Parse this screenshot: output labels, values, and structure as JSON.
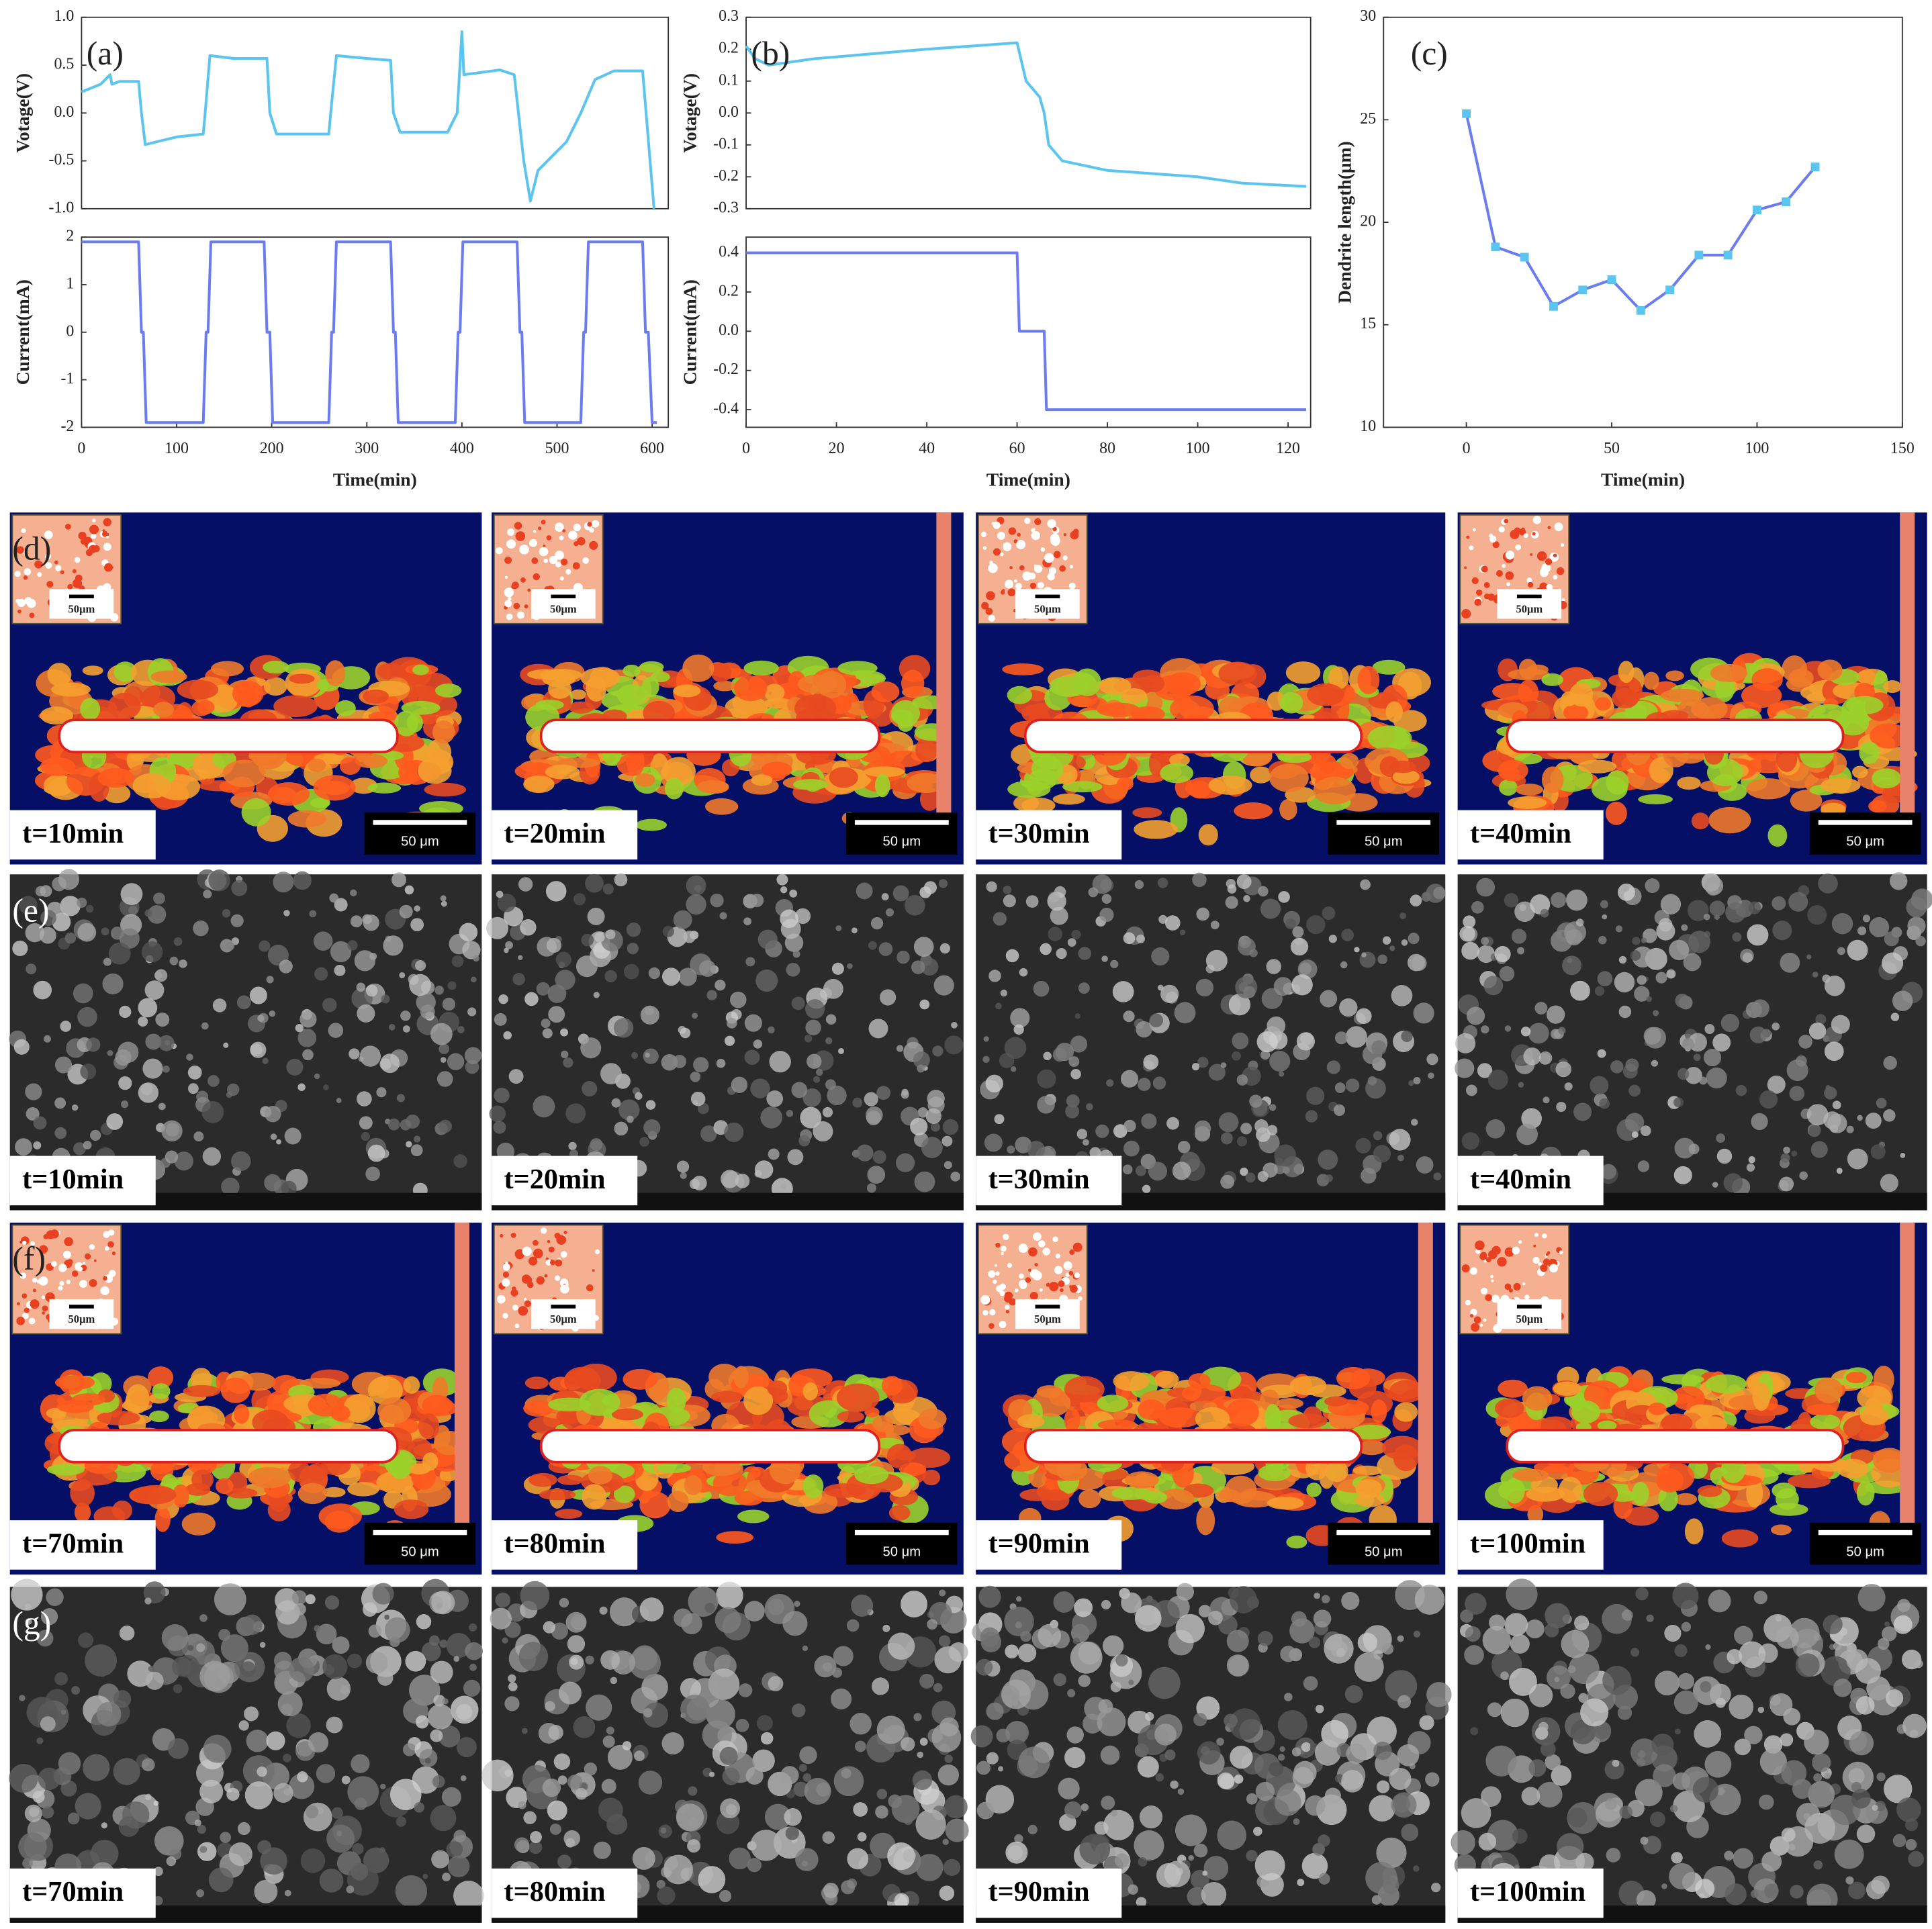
{
  "chart_data": [
    {
      "type": "line",
      "ylabel": "Votage(V)",
      "annotation": "(a)",
      "x": [
        0,
        20,
        30,
        32,
        40,
        60,
        63,
        67,
        100,
        128,
        130,
        135,
        160,
        195,
        198,
        205,
        260,
        262,
        268,
        300,
        325,
        328,
        335,
        385,
        395,
        400,
        402,
        440,
        455,
        465,
        472,
        480,
        510,
        525,
        540,
        560,
        590,
        602
      ],
      "series": [
        {
          "color": "#5bc5f0",
          "values": [
            0.22,
            0.3,
            0.4,
            0.3,
            0.33,
            0.33,
            0,
            -0.33,
            -0.25,
            -0.22,
            0,
            0.6,
            0.57,
            0.57,
            0,
            -0.22,
            -0.22,
            0,
            0.6,
            0.57,
            0.55,
            0,
            -0.2,
            -0.2,
            0,
            0.85,
            0.4,
            0.45,
            0.4,
            -0.5,
            -0.92,
            -0.6,
            -0.3,
            0,
            0.35,
            0.44,
            0.44,
            -1.0
          ]
        }
      ],
      "xlim": [
        0,
        617
      ],
      "ylim": [
        -1,
        1
      ],
      "yticks": [
        {
          "value": -1,
          "label": "-1.0"
        },
        -0.5,
        {
          "value": 0,
          "label": "0.0"
        },
        0.5,
        {
          "value": 1,
          "label": "1.0"
        }
      ]
    },
    {
      "type": "line",
      "ylabel": "Current(mA)",
      "xlabel": "Time(min)",
      "x": [
        0,
        60,
        63,
        65,
        68,
        128,
        131,
        133,
        136,
        192,
        195,
        198,
        201,
        260,
        263,
        265,
        268,
        325,
        328,
        330,
        333,
        393,
        396,
        398,
        401,
        458,
        461,
        463,
        466,
        525,
        528,
        530,
        533,
        590,
        593,
        596,
        600,
        605
      ],
      "series": [
        {
          "color": "#6b7cf0",
          "values": [
            1.9,
            1.9,
            0,
            0,
            -1.9,
            -1.9,
            0,
            0,
            1.9,
            1.9,
            0,
            0,
            -1.9,
            -1.9,
            0,
            0,
            1.9,
            1.9,
            0,
            0,
            -1.9,
            -1.9,
            0,
            0,
            1.9,
            1.9,
            0,
            0,
            -1.9,
            -1.9,
            0,
            0,
            1.9,
            1.9,
            0,
            0,
            -1.9,
            -1.9
          ]
        }
      ],
      "xlim": [
        0,
        617
      ],
      "ylim": [
        -2,
        2
      ],
      "xticks": [
        0,
        100,
        200,
        300,
        400,
        500,
        600
      ],
      "yticks": [
        -2,
        -1,
        0,
        1,
        2
      ]
    },
    {
      "type": "line",
      "ylabel": "Votage(V)",
      "annotation": "(b)",
      "x": [
        0,
        2,
        5,
        15,
        40,
        60,
        62,
        65,
        66,
        67,
        70,
        80,
        100,
        110,
        124
      ],
      "series": [
        {
          "color": "#5bc5f0",
          "values": [
            0.21,
            0.17,
            0.15,
            0.17,
            0.2,
            0.22,
            0.1,
            0.05,
            0.0,
            -0.1,
            -0.15,
            -0.18,
            -0.2,
            -0.22,
            -0.23
          ]
        }
      ],
      "xlim": [
        0,
        125
      ],
      "ylim": [
        -0.3,
        0.3
      ],
      "yticks": [
        -0.3,
        -0.2,
        -0.1,
        {
          "value": 0,
          "label": "0.0"
        },
        0.1,
        0.2,
        0.3
      ]
    },
    {
      "type": "line",
      "ylabel": "Current(mA)",
      "xlabel": "Time(min)",
      "x": [
        0,
        60,
        60.5,
        66,
        66.5,
        124
      ],
      "series": [
        {
          "color": "#6b7cf0",
          "values": [
            0.4,
            0.4,
            0,
            0,
            -0.4,
            -0.4
          ]
        }
      ],
      "xlim": [
        0,
        125
      ],
      "ylim": [
        -0.49,
        0.48
      ],
      "xticks": [
        0,
        20,
        40,
        60,
        80,
        100,
        120
      ],
      "yticks": [
        -0.4,
        -0.2,
        {
          "value": 0,
          "label": "0.0"
        },
        0.2,
        0.4
      ]
    },
    {
      "type": "line",
      "ylabel": "Dendrite length(μm)",
      "xlabel": "Time(min)",
      "annotation": "(c)",
      "markers": true,
      "x": [
        0,
        10,
        20,
        30,
        40,
        50,
        60,
        70,
        80,
        90,
        100,
        110,
        120
      ],
      "series": [
        {
          "color": "#6b7cf0",
          "marker_color": "#5bc5f0",
          "values": [
            25.3,
            18.8,
            18.3,
            15.9,
            16.7,
            17.2,
            15.7,
            16.7,
            18.4,
            18.4,
            20.6,
            21,
            22.7
          ]
        }
      ],
      "xlim": [
        -28.5,
        150
      ],
      "ylim": [
        10,
        30
      ],
      "xticks": [
        0,
        50,
        100,
        150
      ],
      "yticks": [
        10,
        15,
        20,
        25,
        30
      ]
    }
  ],
  "panels": [
    {
      "label": "(d)",
      "kind": "map",
      "times": [
        "t=10min",
        "t=20min",
        "t=30min",
        "t=40min"
      ],
      "scale_bar": "50 μm",
      "inset_scale": "50μm"
    },
    {
      "label": "(e)",
      "kind": "sem",
      "times": [
        "t=10min",
        "t=20min",
        "t=30min",
        "t=40min"
      ]
    },
    {
      "label": "(f)",
      "kind": "map",
      "times": [
        "t=70min",
        "t=80min",
        "t=90min",
        "t=100min"
      ],
      "scale_bar": "50 μm",
      "inset_scale": "50μm"
    },
    {
      "label": "(g)",
      "kind": "sem",
      "times": [
        "t=70min",
        "t=80min",
        "t=90min",
        "t=100min"
      ]
    }
  ]
}
